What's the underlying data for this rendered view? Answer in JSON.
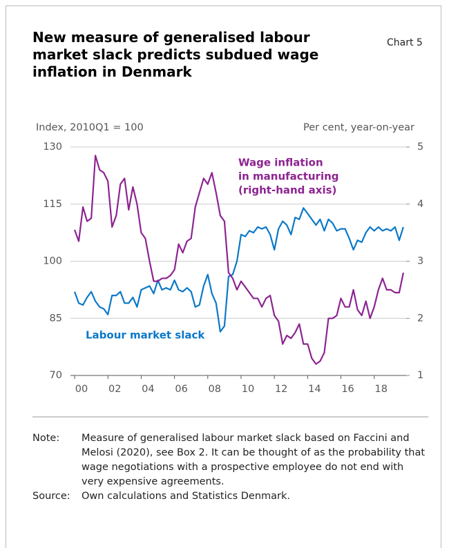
{
  "chart_data": {
    "type": "line",
    "title": "New measure of generalised labour market slack predicts subdued wage inflation in Denmark",
    "chart_label": "Chart 5",
    "ylabel": "Index, 2010Q1 = 100",
    "y2label": "Per cent, year-on-year",
    "x": [
      2000,
      2000.25,
      2000.5,
      2000.75,
      2001,
      2001.25,
      2001.5,
      2001.75,
      2002,
      2002.25,
      2002.5,
      2002.75,
      2003,
      2003.25,
      2003.5,
      2003.75,
      2004,
      2004.25,
      2004.5,
      2004.75,
      2005,
      2005.25,
      2005.5,
      2005.75,
      2006,
      2006.25,
      2006.5,
      2006.75,
      2007,
      2007.25,
      2007.5,
      2007.75,
      2008,
      2008.25,
      2008.5,
      2008.75,
      2009,
      2009.25,
      2009.5,
      2009.75,
      2010,
      2010.25,
      2010.5,
      2010.75,
      2011,
      2011.25,
      2011.5,
      2011.75,
      2012,
      2012.25,
      2012.5,
      2012.75,
      2013,
      2013.25,
      2013.5,
      2013.75,
      2014,
      2014.25,
      2014.5,
      2014.75,
      2015,
      2015.25,
      2015.5,
      2015.75,
      2016,
      2016.25,
      2016.5,
      2016.75,
      2017,
      2017.25,
      2017.5,
      2017.75,
      2018,
      2018.25,
      2018.5,
      2018.75,
      2019,
      2019.25,
      2019.5,
      2019.75
    ],
    "xlim": [
      1999.75,
      2019.92
    ],
    "xticks": [
      {
        "value": 2000,
        "label": "00"
      },
      {
        "value": 2002,
        "label": "02"
      },
      {
        "value": 2004,
        "label": "04"
      },
      {
        "value": 2006,
        "label": "06"
      },
      {
        "value": 2008,
        "label": "08"
      },
      {
        "value": 2010,
        "label": "10"
      },
      {
        "value": 2012,
        "label": "12"
      },
      {
        "value": 2014,
        "label": "14"
      },
      {
        "value": 2016,
        "label": "16"
      },
      {
        "value": 2018,
        "label": "18"
      }
    ],
    "ylim": [
      70,
      130
    ],
    "yticks": [
      70,
      85,
      100,
      115,
      130
    ],
    "y2lim": [
      1,
      5
    ],
    "y2ticks": [
      1,
      2,
      3,
      4,
      5
    ],
    "grid": true,
    "series": [
      {
        "name": "Labour market slack",
        "color": "#0a78c8",
        "values": [
          92,
          89,
          88.5,
          90.5,
          92,
          89.5,
          88,
          87.5,
          86,
          91,
          91,
          92,
          89,
          89,
          90.5,
          88,
          92.5,
          93,
          93.5,
          91.5,
          95,
          92.5,
          93,
          92.5,
          95,
          92.5,
          92,
          93,
          92,
          88,
          88.5,
          93.5,
          96.5,
          91.5,
          89,
          81.5,
          83,
          96,
          96.5,
          100,
          107,
          106.5,
          108,
          107.5,
          109,
          108.5,
          109,
          107,
          103,
          108.5,
          110.5,
          109.5,
          107,
          111.5,
          111,
          114,
          112.5,
          111,
          109.5,
          111,
          108,
          111,
          110,
          108,
          108.5,
          108.5,
          106,
          103,
          105.5,
          105,
          107.5,
          109,
          108,
          109,
          108,
          108.5,
          108,
          109,
          105.5,
          109
        ]
      },
      {
        "name_lines": [
          "Wage inflation",
          "in manufacturing",
          "(right-hand axis)"
        ],
        "color": "#8c2491",
        "axis": "y2",
        "values": [
          3.55,
          3.35,
          3.95,
          3.7,
          3.75,
          4.85,
          4.6,
          4.55,
          4.4,
          3.6,
          3.8,
          4.35,
          4.45,
          3.9,
          4.3,
          4.0,
          3.5,
          3.4,
          3.0,
          2.65,
          2.65,
          2.7,
          2.7,
          2.75,
          2.85,
          3.3,
          3.15,
          3.35,
          3.4,
          3.95,
          4.2,
          4.45,
          4.35,
          4.55,
          4.2,
          3.8,
          3.7,
          2.8,
          2.7,
          2.5,
          2.65,
          2.55,
          2.45,
          2.35,
          2.35,
          2.2,
          2.35,
          2.4,
          2.05,
          1.95,
          1.55,
          1.7,
          1.65,
          1.75,
          1.9,
          1.55,
          1.55,
          1.3,
          1.2,
          1.25,
          1.4,
          2.0,
          2.0,
          2.05,
          2.35,
          2.2,
          2.2,
          2.5,
          2.15,
          2.05,
          2.3,
          2.0,
          2.2,
          2.5,
          2.7,
          2.5,
          2.5,
          2.45,
          2.45,
          2.8
        ]
      }
    ],
    "note_label": "Note:",
    "note": "Measure of generalised labour market slack based on Faccini and Melosi (2020), see Box 2. It can be thought of as the probability that wage negotiations with a prospective employee do not end with very expensive agreements.",
    "source_label": "Source:",
    "source": "Own calculations and Statistics Denmark."
  }
}
